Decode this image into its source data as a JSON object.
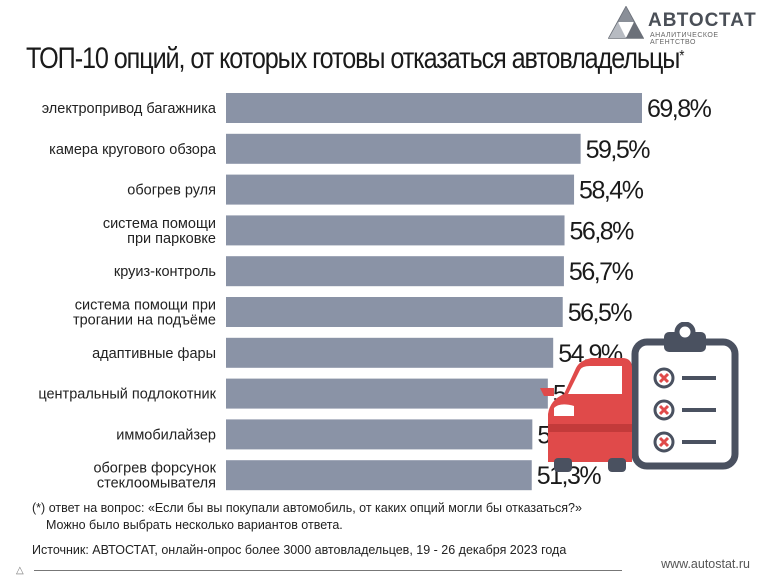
{
  "logo": {
    "brand": "АВТОСТАТ",
    "tagline": "АНАЛИТИЧЕСКОЕ АГЕНТСТВО"
  },
  "title": {
    "text": "ТОП-10 опций, от которых готовы отказаться автовладельцы",
    "mark": "*"
  },
  "chart_data": {
    "type": "bar",
    "orientation": "horizontal",
    "categories": [
      [
        "электропривод багажника"
      ],
      [
        "камера кругового обзора"
      ],
      [
        "обогрев руля"
      ],
      [
        "система помощи",
        "при парковке"
      ],
      [
        "круиз-контроль"
      ],
      [
        "система помощи при",
        "трогании на подъёме"
      ],
      [
        "адаптивные фары"
      ],
      [
        "центральный подлокотник"
      ],
      [
        "иммобилайзер"
      ],
      [
        "обогрев форсунок",
        "стеклоомывателя"
      ]
    ],
    "values": [
      69.8,
      59.5,
      58.4,
      56.8,
      56.7,
      56.5,
      54.9,
      54.0,
      51.4,
      51.3
    ],
    "value_labels": [
      "69,8%",
      "59,5%",
      "58,4%",
      "56,8%",
      "56,7%",
      "56,5%",
      "54,9%",
      "54,0%",
      "51,4%",
      "51,3%"
    ],
    "xlim": [
      0,
      69.8
    ],
    "bar_color": "#8a93a6"
  },
  "footnote": {
    "marker": "(*)",
    "line1": "ответ на вопрос: «Если бы вы покупали автомобиль, от каких опций могли бы отказаться?»",
    "line2": "Можно было выбрать несколько вариантов ответа."
  },
  "source": "Источник: АВТОСТАТ, онлайн-опрос более 3000 автовладельцев, 19 - 26 декабря 2023 года",
  "website": "www.autostat.ru",
  "colors": {
    "car": "#e04a4a",
    "clipboard": "#4a5160",
    "cross": "#e04a4a"
  }
}
